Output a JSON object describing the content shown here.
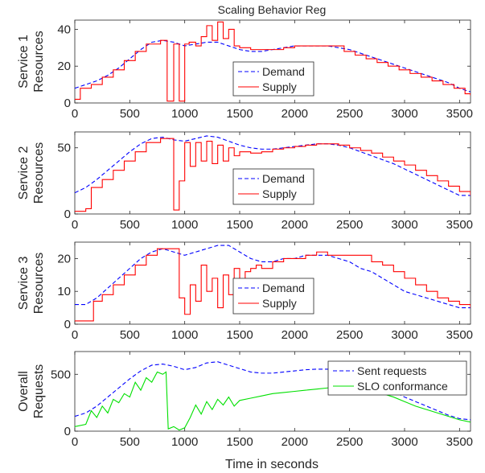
{
  "title": "Scaling Behavior Reg",
  "xlabel": "Time in seconds",
  "chart_data": [
    {
      "type": "line",
      "ylabel": [
        "Service 1",
        "Resources"
      ],
      "xlim": [
        0,
        3600
      ],
      "ylim": [
        0,
        45
      ],
      "xticks": [
        0,
        500,
        1000,
        1500,
        2000,
        2500,
        3000,
        3500
      ],
      "yticks": [
        0,
        20,
        40
      ],
      "legend_position": "center-right",
      "series": [
        {
          "name": "Demand",
          "style": "dashed",
          "color": "#0000ff",
          "x": [
            0,
            100,
            200,
            300,
            400,
            500,
            600,
            700,
            800,
            900,
            1000,
            1100,
            1200,
            1300,
            1400,
            1500,
            1600,
            1700,
            1800,
            1900,
            2000,
            2100,
            2200,
            2300,
            2400,
            2500,
            2600,
            2700,
            2800,
            2900,
            3000,
            3100,
            3200,
            3300,
            3400,
            3500,
            3600
          ],
          "y": [
            8,
            10,
            12,
            15,
            19,
            24,
            29,
            33,
            34,
            33,
            31,
            32,
            33,
            33,
            31,
            29,
            28,
            28,
            29,
            30,
            31,
            31,
            31,
            31,
            30,
            29,
            27,
            25,
            23,
            21,
            19,
            17,
            15,
            13,
            11,
            8,
            6
          ]
        },
        {
          "name": "Supply",
          "style": "solid",
          "color": "#ff0000",
          "step": true,
          "x": [
            0,
            50,
            150,
            250,
            350,
            450,
            550,
            650,
            780,
            800,
            840,
            900,
            950,
            1000,
            1040,
            1100,
            1150,
            1200,
            1250,
            1300,
            1350,
            1400,
            1450,
            1500,
            1600,
            1700,
            1800,
            1900,
            2000,
            2100,
            2400,
            2450,
            2550,
            2650,
            2750,
            2850,
            2950,
            3050,
            3150,
            3250,
            3350,
            3450,
            3550,
            3600
          ],
          "y": [
            2,
            8,
            10,
            14,
            18,
            23,
            28,
            32,
            34,
            34,
            1,
            32,
            1,
            32,
            33,
            31,
            36,
            42,
            34,
            44,
            35,
            40,
            31,
            30,
            29,
            29,
            29,
            30,
            31,
            31,
            31,
            28,
            26,
            24,
            22,
            20,
            18,
            16,
            14,
            12,
            10,
            8,
            5,
            4
          ]
        }
      ]
    },
    {
      "type": "line",
      "ylabel": [
        "Service 2",
        "Resources"
      ],
      "xlim": [
        0,
        3600
      ],
      "ylim": [
        0,
        62
      ],
      "xticks": [
        0,
        500,
        1000,
        1500,
        2000,
        2500,
        3000,
        3500
      ],
      "yticks": [
        0,
        50
      ],
      "legend_position": "center-right",
      "series": [
        {
          "name": "Demand",
          "style": "dashed",
          "color": "#0000ff",
          "x": [
            0,
            100,
            200,
            300,
            400,
            500,
            600,
            700,
            800,
            900,
            1000,
            1100,
            1200,
            1300,
            1400,
            1500,
            1600,
            1700,
            1800,
            1900,
            2000,
            2100,
            2200,
            2300,
            2400,
            2500,
            2600,
            2700,
            2800,
            2900,
            3000,
            3100,
            3200,
            3300,
            3400,
            3500,
            3600
          ],
          "y": [
            16,
            20,
            26,
            33,
            40,
            47,
            53,
            57,
            58,
            56,
            55,
            57,
            59,
            58,
            55,
            52,
            50,
            49,
            49,
            50,
            51,
            52,
            53,
            53,
            52,
            50,
            47,
            44,
            41,
            38,
            34,
            30,
            26,
            22,
            18,
            14,
            14
          ]
        },
        {
          "name": "Supply",
          "style": "solid",
          "color": "#ff0000",
          "step": true,
          "x": [
            0,
            100,
            150,
            250,
            350,
            450,
            550,
            650,
            780,
            830,
            900,
            950,
            1000,
            1050,
            1100,
            1150,
            1200,
            1250,
            1300,
            1350,
            1400,
            1450,
            1500,
            1600,
            1700,
            1800,
            1900,
            2000,
            2100,
            2200,
            2300,
            2400,
            2500,
            2600,
            2700,
            2800,
            2900,
            3000,
            3100,
            3200,
            3300,
            3400,
            3500,
            3600
          ],
          "y": [
            2,
            4,
            20,
            26,
            33,
            40,
            47,
            54,
            57,
            57,
            3,
            25,
            54,
            36,
            54,
            40,
            55,
            38,
            52,
            40,
            50,
            44,
            47,
            46,
            47,
            49,
            50,
            51,
            52,
            53,
            53,
            52,
            50,
            48,
            46,
            43,
            40,
            37,
            33,
            29,
            25,
            21,
            17,
            14
          ]
        }
      ]
    },
    {
      "type": "line",
      "ylabel": [
        "Service 3",
        "Resources"
      ],
      "xlim": [
        0,
        3600
      ],
      "ylim": [
        0,
        25
      ],
      "xticks": [
        0,
        500,
        1000,
        1500,
        2000,
        2500,
        3000,
        3500
      ],
      "yticks": [
        0,
        10,
        20
      ],
      "legend_position": "lower-center-right",
      "series": [
        {
          "name": "Demand",
          "style": "dashed",
          "color": "#0000ff",
          "x": [
            0,
            100,
            200,
            300,
            400,
            500,
            600,
            700,
            800,
            900,
            1000,
            1100,
            1200,
            1300,
            1400,
            1500,
            1600,
            1700,
            1800,
            1900,
            2000,
            2100,
            2200,
            2300,
            2400,
            2500,
            2600,
            2700,
            2800,
            2900,
            3000,
            3100,
            3200,
            3300,
            3400,
            3500,
            3600
          ],
          "y": [
            6,
            6,
            8,
            11,
            14,
            17,
            20,
            22,
            23,
            22,
            21,
            22,
            23,
            24,
            24,
            22,
            20,
            19,
            19,
            20,
            20,
            21,
            21,
            21,
            20,
            19,
            17,
            16,
            14,
            12,
            10,
            9,
            8,
            7,
            6,
            5,
            5
          ]
        },
        {
          "name": "Supply",
          "style": "solid",
          "color": "#ff0000",
          "step": true,
          "x": [
            0,
            170,
            250,
            350,
            450,
            550,
            650,
            750,
            880,
            950,
            1000,
            1050,
            1100,
            1150,
            1200,
            1250,
            1300,
            1350,
            1400,
            1450,
            1500,
            1550,
            1600,
            1650,
            1700,
            1800,
            1900,
            2000,
            2100,
            2200,
            2300,
            2600,
            2700,
            2800,
            2900,
            3000,
            3100,
            3200,
            3300,
            3400,
            3500,
            3600
          ],
          "y": [
            1,
            7,
            9,
            12,
            15,
            18,
            21,
            23,
            23,
            8,
            3,
            12,
            7,
            18,
            10,
            14,
            5,
            15,
            9,
            17,
            12,
            16,
            17,
            18,
            17,
            19,
            20,
            20,
            21,
            22,
            21,
            21,
            19,
            18,
            16,
            14,
            12,
            10,
            8,
            7,
            6,
            5
          ]
        }
      ]
    },
    {
      "type": "line",
      "ylabel": [
        "Overall",
        "Requests"
      ],
      "xlim": [
        0,
        3600
      ],
      "ylim": [
        0,
        700
      ],
      "xticks": [
        0,
        500,
        1000,
        1500,
        2000,
        2500,
        3000,
        3500
      ],
      "yticks": [
        0,
        500
      ],
      "legend_position": "top-right",
      "series": [
        {
          "name": "Sent requests",
          "style": "dashed",
          "color": "#0000ff",
          "x": [
            0,
            100,
            200,
            300,
            400,
            500,
            600,
            700,
            800,
            900,
            1000,
            1100,
            1200,
            1300,
            1400,
            1500,
            1600,
            1700,
            1800,
            1900,
            2000,
            2100,
            2200,
            2300,
            2400,
            2500,
            2600,
            2700,
            2800,
            2900,
            3000,
            3100,
            3200,
            3300,
            3400,
            3500,
            3600
          ],
          "y": [
            130,
            160,
            220,
            300,
            380,
            460,
            530,
            580,
            590,
            570,
            540,
            560,
            600,
            610,
            580,
            550,
            520,
            510,
            510,
            520,
            530,
            540,
            545,
            545,
            530,
            510,
            470,
            430,
            390,
            350,
            300,
            260,
            220,
            180,
            140,
            110,
            100
          ]
        },
        {
          "name": "SLO conformance",
          "style": "solid",
          "color": "#00e000",
          "x": [
            0,
            100,
            150,
            200,
            250,
            300,
            350,
            400,
            450,
            500,
            550,
            600,
            650,
            700,
            750,
            800,
            830,
            850,
            900,
            950,
            1000,
            1050,
            1100,
            1150,
            1200,
            1250,
            1300,
            1350,
            1400,
            1450,
            1500,
            1600,
            1700,
            1800,
            1900,
            2000,
            2100,
            2200,
            2300,
            2400,
            2500,
            2600,
            2700,
            2800,
            2900,
            3000,
            3100,
            3200,
            3300,
            3400,
            3500,
            3600
          ],
          "y": [
            40,
            60,
            180,
            120,
            220,
            160,
            280,
            250,
            330,
            300,
            430,
            360,
            470,
            430,
            520,
            500,
            520,
            20,
            40,
            10,
            30,
            120,
            230,
            150,
            260,
            190,
            280,
            230,
            300,
            220,
            270,
            290,
            310,
            330,
            340,
            350,
            360,
            370,
            380,
            390,
            360,
            380,
            360,
            330,
            300,
            260,
            220,
            190,
            160,
            130,
            100,
            80
          ]
        }
      ]
    }
  ]
}
